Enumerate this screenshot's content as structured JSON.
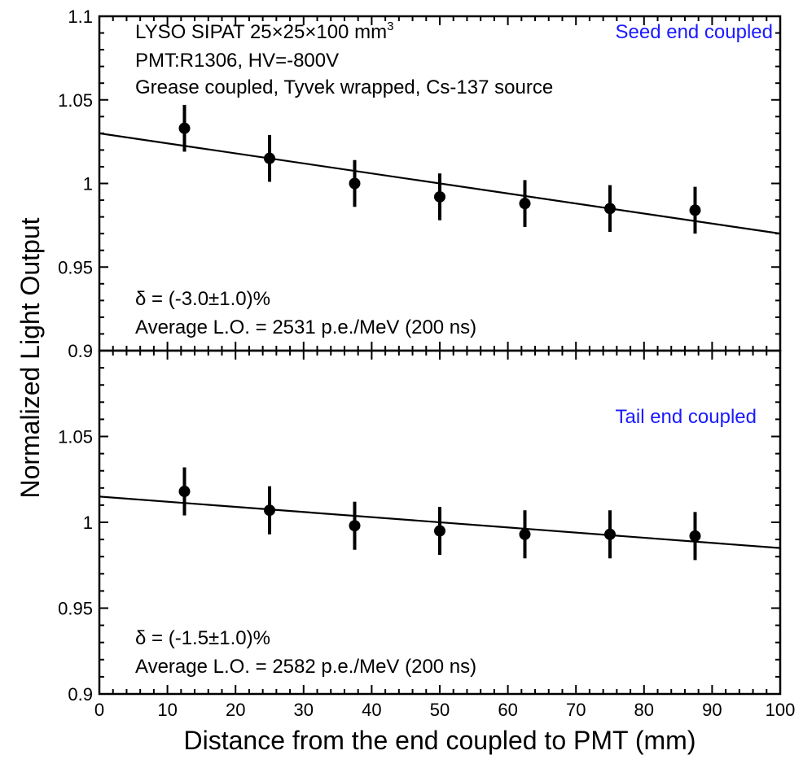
{
  "chart_data": [
    {
      "type": "scatter",
      "panel": "top",
      "x": [
        12.5,
        25,
        37.5,
        50,
        62.5,
        75,
        87.5
      ],
      "y": [
        1.033,
        1.015,
        1.0,
        0.992,
        0.988,
        0.985,
        0.984
      ],
      "yerr": [
        0.014,
        0.014,
        0.014,
        0.014,
        0.014,
        0.014,
        0.014
      ],
      "fit": {
        "x": [
          0,
          100
        ],
        "y": [
          1.03,
          0.97
        ]
      },
      "xlim": [
        0,
        100
      ],
      "ylim": [
        0.9,
        1.1
      ],
      "ylabel": "Normalized Light Output",
      "yticks": [
        "0.9",
        "0.95",
        "1",
        "1.05",
        "1.1"
      ],
      "annotations": {
        "crystal": "LYSO  SIPAT  25×25×100 mm",
        "crystal_sup": "3",
        "pmt": "PMT:R1306, HV=-800V",
        "setup": "Grease coupled, Tyvek wrapped, Cs-137 source",
        "label": "Seed end coupled",
        "delta": "δ = (-3.0±1.0)%",
        "average": "Average L.O. = 2531 p.e./MeV (200 ns)"
      },
      "colors": {
        "label": "#1a1aff",
        "marker": "#000000"
      },
      "grid": false
    },
    {
      "type": "scatter",
      "panel": "bottom",
      "x": [
        12.5,
        25,
        37.5,
        50,
        62.5,
        75,
        87.5
      ],
      "y": [
        1.018,
        1.007,
        0.998,
        0.995,
        0.993,
        0.993,
        0.992
      ],
      "yerr": [
        0.014,
        0.014,
        0.014,
        0.014,
        0.014,
        0.014,
        0.014
      ],
      "fit": {
        "x": [
          0,
          100
        ],
        "y": [
          1.015,
          0.985
        ]
      },
      "xlim": [
        0,
        100
      ],
      "ylim": [
        0.9,
        1.1
      ],
      "xlabel": "Distance from the end coupled to PMT (mm)",
      "xticks": [
        "0",
        "10",
        "20",
        "30",
        "40",
        "50",
        "60",
        "70",
        "80",
        "90",
        "100"
      ],
      "yticks": [
        "0.9",
        "0.95",
        "1",
        "1.05"
      ],
      "annotations": {
        "label": "Tail end coupled",
        "delta": "δ = (-1.5±1.0)%",
        "average": "Average L.O. = 2582 p.e./MeV (200 ns)"
      },
      "colors": {
        "label": "#1a1aff",
        "marker": "#000000"
      },
      "grid": false
    }
  ]
}
